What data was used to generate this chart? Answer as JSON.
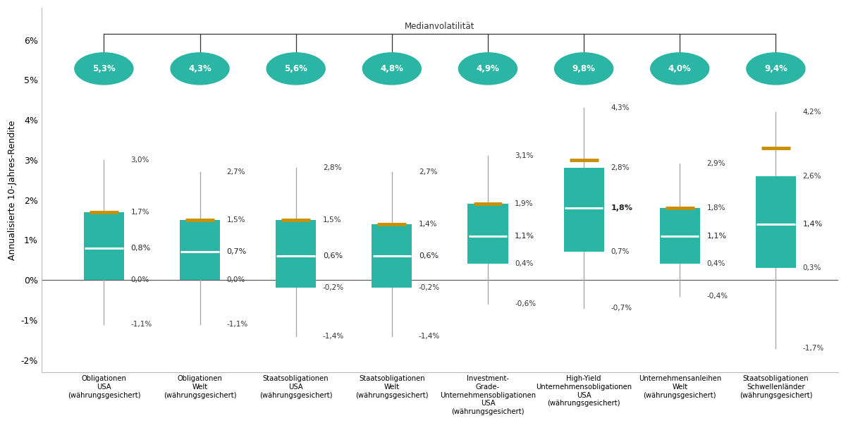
{
  "categories": [
    "Obligationen\nUSA\n(währungsgesichert)",
    "Obligationen\nWelt\n(währungsgesichert)",
    "Staatsobligationen\nUSA\n(währungsgesichert)",
    "Staatsobligationen\nWelt\n(währungsgesichert)",
    "Investment-\nGrade-\nUnternehmensobligationen\nUSA\n(währungsgesichert)",
    "High-Yield\nUnternehmensobligationen\nUSA\n(währungsgesichert)",
    "Unternehmensanleihen\nWelt\n(währungsgesichert)",
    "Staatsobligationen\nSchwellenländer\n(währungsgesichert)"
  ],
  "volatilities": [
    "5,3%",
    "4,3%",
    "5,6%",
    "4,8%",
    "4,9%",
    "9,8%",
    "4,0%",
    "9,4%"
  ],
  "whisker_low": [
    -1.1,
    -1.1,
    -1.4,
    -1.4,
    -0.6,
    -0.7,
    -0.4,
    -1.7
  ],
  "q1": [
    0.0,
    0.0,
    -0.2,
    -0.2,
    0.4,
    0.7,
    0.4,
    0.3
  ],
  "median": [
    0.8,
    0.7,
    0.6,
    0.6,
    1.1,
    1.8,
    1.1,
    1.4
  ],
  "q3": [
    1.7,
    1.5,
    1.5,
    1.4,
    1.9,
    2.8,
    1.8,
    2.6
  ],
  "whisker_high": [
    3.0,
    2.7,
    2.8,
    2.7,
    3.1,
    4.3,
    2.9,
    4.2
  ],
  "mean": [
    1.7,
    1.5,
    1.5,
    1.4,
    1.9,
    3.0,
    1.8,
    3.3
  ],
  "median_bold_flags": [
    false,
    false,
    false,
    false,
    false,
    true,
    false,
    false
  ],
  "box_color": "#2ab5a5",
  "mean_color": "#c8900a",
  "median_color": "#ffffff",
  "whisker_color": "#aaaaaa",
  "ylabel": "Annualisierte 10-Jahres-Rendite",
  "ylim": [
    -2.3,
    6.8
  ],
  "yticks": [
    -2,
    -1,
    0,
    1,
    2,
    3,
    4,
    5,
    6
  ],
  "ytick_labels": [
    "-2%",
    "-1%",
    "0%",
    "1%",
    "2%",
    "3%",
    "4%",
    "5%",
    "6%"
  ],
  "background_color": "#ffffff",
  "teal_color": "#2ab5a5",
  "volatility_label": "Medianvolatilität",
  "annotations_low": [
    "-1,1%",
    "-1,1%",
    "-1,4%",
    "-1,4%",
    "-0,6%",
    "-0,7%",
    "-0,4%",
    "-1,7%"
  ],
  "annotations_q1": [
    "0,0%",
    "0,0%",
    "-0,2%",
    "-0,2%",
    "0,4%",
    "0,7%",
    "0,4%",
    "0,3%"
  ],
  "annotations_median": [
    "0,8%",
    "0,7%",
    "0,6%",
    "0,6%",
    "1,1%",
    "1,8%",
    "1,1%",
    "1,4%"
  ],
  "annotations_q3": [
    "1,7%",
    "1,5%",
    "1,5%",
    "1,4%",
    "1,9%",
    "2,8%",
    "1,8%",
    "2,6%"
  ],
  "annotations_high": [
    "3,0%",
    "2,7%",
    "2,8%",
    "2,7%",
    "3,1%",
    "4,3%",
    "2,9%",
    "4,2%"
  ]
}
